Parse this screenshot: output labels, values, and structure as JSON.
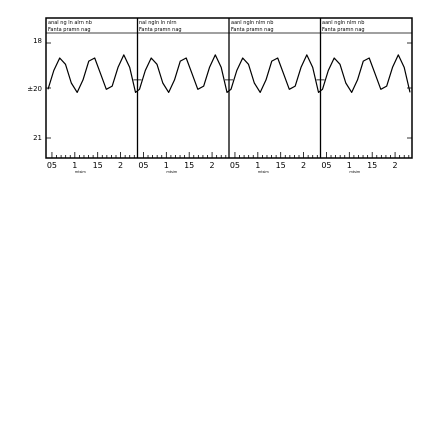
{
  "chart_data": {
    "type": "line",
    "title": "",
    "xlabel": "",
    "ylabel": "",
    "panels": [
      {
        "header": [
          "anal ng ln alrn nb",
          "Fanta pramn nag"
        ]
      },
      {
        "header": [
          "nal ngln ln nlrn",
          "Fanta pramn nag"
        ]
      },
      {
        "header": [
          "aanl ngln nlrn nb",
          "Fanta pramn nag"
        ]
      },
      {
        "header": [
          "aanl ngln nlrn nb",
          "Fanta pramn nag"
        ]
      }
    ],
    "x_ticks": [
      [
        "0.5",
        "1",
        "1.5",
        "2"
      ],
      [
        "0.5",
        "1",
        "1.5",
        "2"
      ],
      [
        "0.5",
        "1",
        "1.5",
        "2"
      ],
      [
        "0.5",
        "1",
        "1.5",
        "2"
      ]
    ],
    "x_tick_labels_printed": [
      "05",
      "1",
      "15",
      "2",
      "05",
      "1",
      "15",
      "2",
      "05",
      "1",
      "15",
      "2",
      "05",
      "1",
      "15",
      "2"
    ],
    "x_unit_labels": [
      "mtsim",
      "mtsim",
      "mtsim",
      "mtsim"
    ],
    "y_ticks": [
      "18",
      "±20",
      "21"
    ],
    "series": [
      {
        "x": [
          0.5,
          0.6,
          0.7,
          0.8,
          0.9,
          1.0,
          1.1,
          1.2,
          1.3,
          1.4,
          1.5,
          1.6,
          1.7,
          1.8,
          1.9,
          2.0
        ],
        "y": [
          19.7,
          20.3,
          20.7,
          20.5,
          19.9,
          19.6,
          20.0,
          20.6,
          20.7,
          20.2,
          19.7,
          19.8,
          20.4,
          20.8,
          20.4,
          19.6
        ]
      }
    ],
    "ylim": [
      17.5,
      21.5
    ],
    "grid": true,
    "legend": "none",
    "colors": {
      "line": "#000000",
      "frame": "#000000",
      "background": "#ffffff"
    }
  }
}
